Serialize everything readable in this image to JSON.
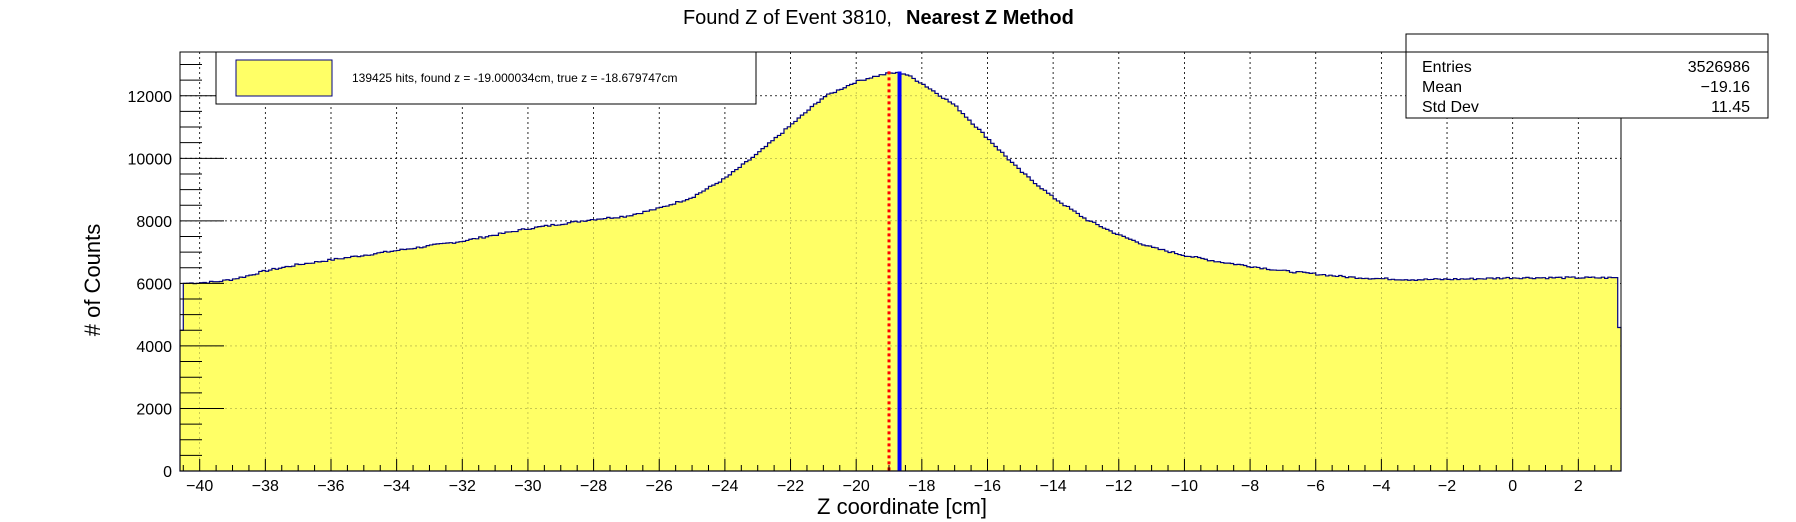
{
  "chart_data": {
    "type": "bar",
    "title": "Found Z of Event 3810,",
    "title_bold": "Nearest Z Method",
    "xlabel": "Z coordinate [cm]",
    "ylabel": "# of Counts",
    "xlim": [
      -40.6,
      3.3
    ],
    "ylim": [
      0,
      13400
    ],
    "grid": true,
    "x_ticks": [
      -40,
      -38,
      -36,
      -34,
      -32,
      -30,
      -28,
      -26,
      -24,
      -22,
      -20,
      -18,
      -16,
      -14,
      -12,
      -10,
      -8,
      -6,
      -4,
      -2,
      0,
      2
    ],
    "y_ticks": [
      0,
      2000,
      4000,
      6000,
      8000,
      10000,
      12000
    ],
    "fill_color": "#ffff66",
    "line_color": "#000080",
    "histogram_profile": {
      "x": [
        -40.6,
        -40.5,
        -40.2,
        -39.5,
        -39,
        -38.5,
        -38,
        -37,
        -36,
        -35,
        -34,
        -33,
        -32,
        -31,
        -30,
        -29,
        -28,
        -27,
        -26,
        -25,
        -24,
        -23,
        -22,
        -21,
        -20,
        -19.5,
        -19,
        -18.8,
        -18.5,
        -18,
        -17,
        -16,
        -15,
        -14,
        -13,
        -12,
        -11,
        -10,
        -9,
        -8,
        -7,
        -6,
        -5,
        -4,
        -3,
        -2,
        -1,
        0,
        1,
        2,
        3.2,
        3.3
      ],
      "y": [
        3000,
        6000,
        6010,
        6050,
        6130,
        6250,
        6400,
        6600,
        6750,
        6900,
        7050,
        7200,
        7350,
        7550,
        7750,
        7900,
        8050,
        8150,
        8400,
        8750,
        9350,
        10150,
        11050,
        11950,
        12450,
        12600,
        12720,
        12730,
        12700,
        12400,
        11700,
        10650,
        9600,
        8750,
        8050,
        7550,
        7150,
        6900,
        6700,
        6550,
        6400,
        6300,
        6200,
        6150,
        6120,
        6130,
        6150,
        6180,
        6180,
        6180,
        6180,
        3000
      ]
    },
    "lines": [
      {
        "name": "found z",
        "x": -19.000034,
        "color": "#ff0000",
        "style": "dotted"
      },
      {
        "name": "true z",
        "x": -18.679747,
        "color": "#0000ff",
        "style": "solid"
      }
    ],
    "legend": {
      "position": "top-left",
      "entries": [
        {
          "label": "139425 hits, found z = -19.000034cm, true z = -18.679747cm",
          "color": "#ffff66"
        }
      ]
    },
    "stats_box": {
      "position": "top-right",
      "rows": [
        {
          "label": "Entries",
          "value": "3526986"
        },
        {
          "label": "Mean",
          "value": "−19.16"
        },
        {
          "label": "Std Dev",
          "value": "11.45"
        }
      ]
    }
  }
}
